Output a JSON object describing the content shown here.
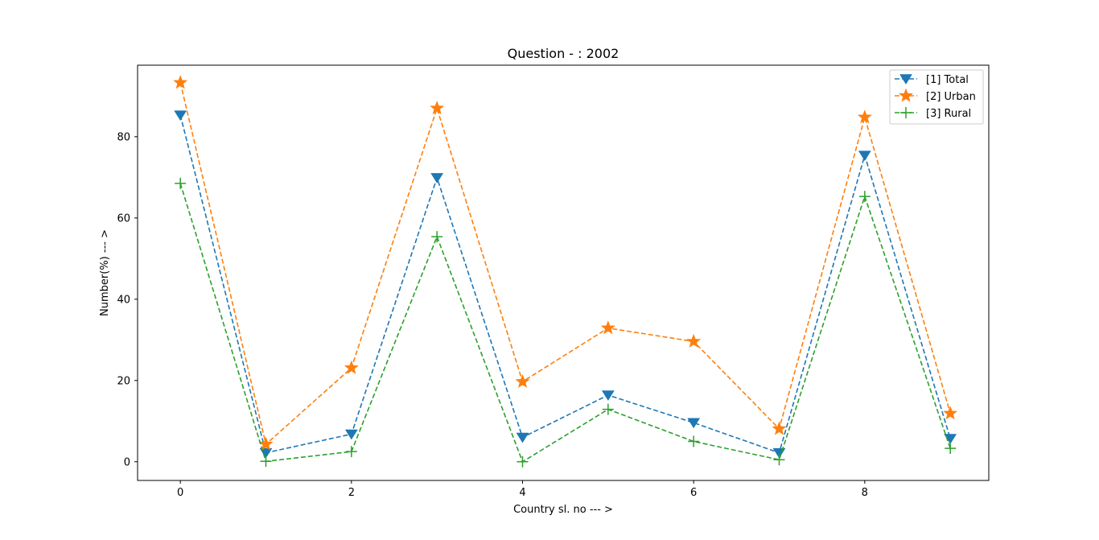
{
  "chart_data": {
    "type": "line",
    "title": "Question - : 2002",
    "xlabel": "Country sl. no --- >",
    "ylabel": "Number(%) --- >",
    "x": [
      0,
      1,
      2,
      3,
      4,
      5,
      6,
      7,
      8,
      9
    ],
    "xlim": [
      -0.5,
      9.45
    ],
    "ylim": [
      -4.6,
      97.6
    ],
    "xticks": [
      "0",
      "2",
      "4",
      "6",
      "8"
    ],
    "xtick_values": [
      0,
      2,
      4,
      6,
      8
    ],
    "yticks": [
      "0",
      "20",
      "40",
      "60",
      "80"
    ],
    "ytick_values": [
      0,
      20,
      40,
      60,
      80
    ],
    "grid": false,
    "legend_position": "top-right",
    "series": [
      {
        "name": "[1] Total",
        "color": "#1f77b4",
        "marker": "triangle-down-icon",
        "linestyle": "dashed",
        "values": [
          85.3,
          2.2,
          6.8,
          69.9,
          6.0,
          16.4,
          9.6,
          2.2,
          75.4,
          5.7
        ]
      },
      {
        "name": "[2] Urban",
        "color": "#ff7f0e",
        "marker": "star-icon",
        "linestyle": "dashed",
        "values": [
          93.3,
          4.3,
          23.1,
          87.0,
          19.7,
          32.9,
          29.6,
          8.1,
          84.8,
          11.9
        ]
      },
      {
        "name": "[3] Rural",
        "color": "#2ca02c",
        "marker": "plus-icon",
        "linestyle": "dashed",
        "values": [
          68.5,
          0.1,
          2.5,
          55.4,
          0.0,
          12.9,
          5.0,
          0.5,
          65.3,
          3.3
        ]
      }
    ]
  }
}
